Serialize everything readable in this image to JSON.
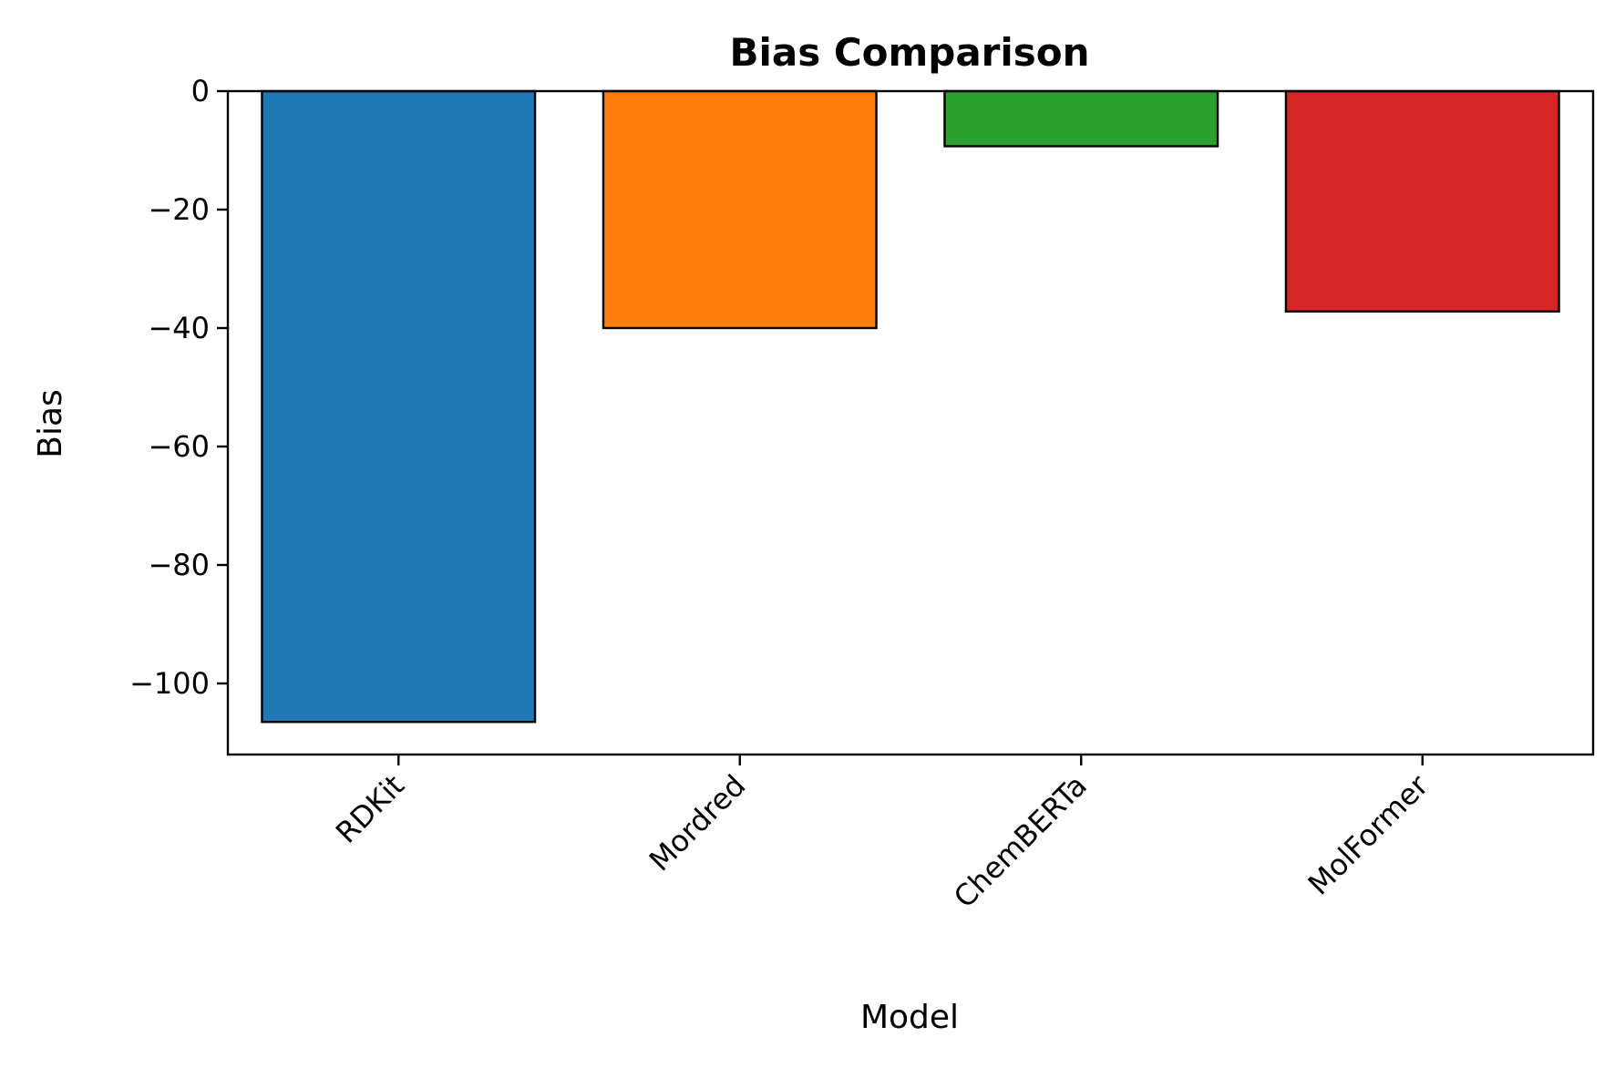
{
  "chart_data": {
    "type": "bar",
    "title": "Bias Comparison",
    "xlabel": "Model",
    "ylabel": "Bias",
    "categories": [
      "RDKit",
      "Mordred",
      "ChemBERTa",
      "MolFormer"
    ],
    "values": [
      -106.5,
      -40.0,
      -9.3,
      -37.2
    ],
    "colors": [
      "#1f77b4",
      "#ff7f0e",
      "#2ca02c",
      "#d62728"
    ],
    "edge_color": "#000000",
    "ylim": [
      -112,
      0
    ],
    "yticks": [
      0,
      -20,
      -40,
      -60,
      -80,
      -100
    ],
    "ytick_labels": [
      "0",
      "−20",
      "−40",
      "−60",
      "−80",
      "−100"
    ],
    "grid": false,
    "legend": false
  }
}
